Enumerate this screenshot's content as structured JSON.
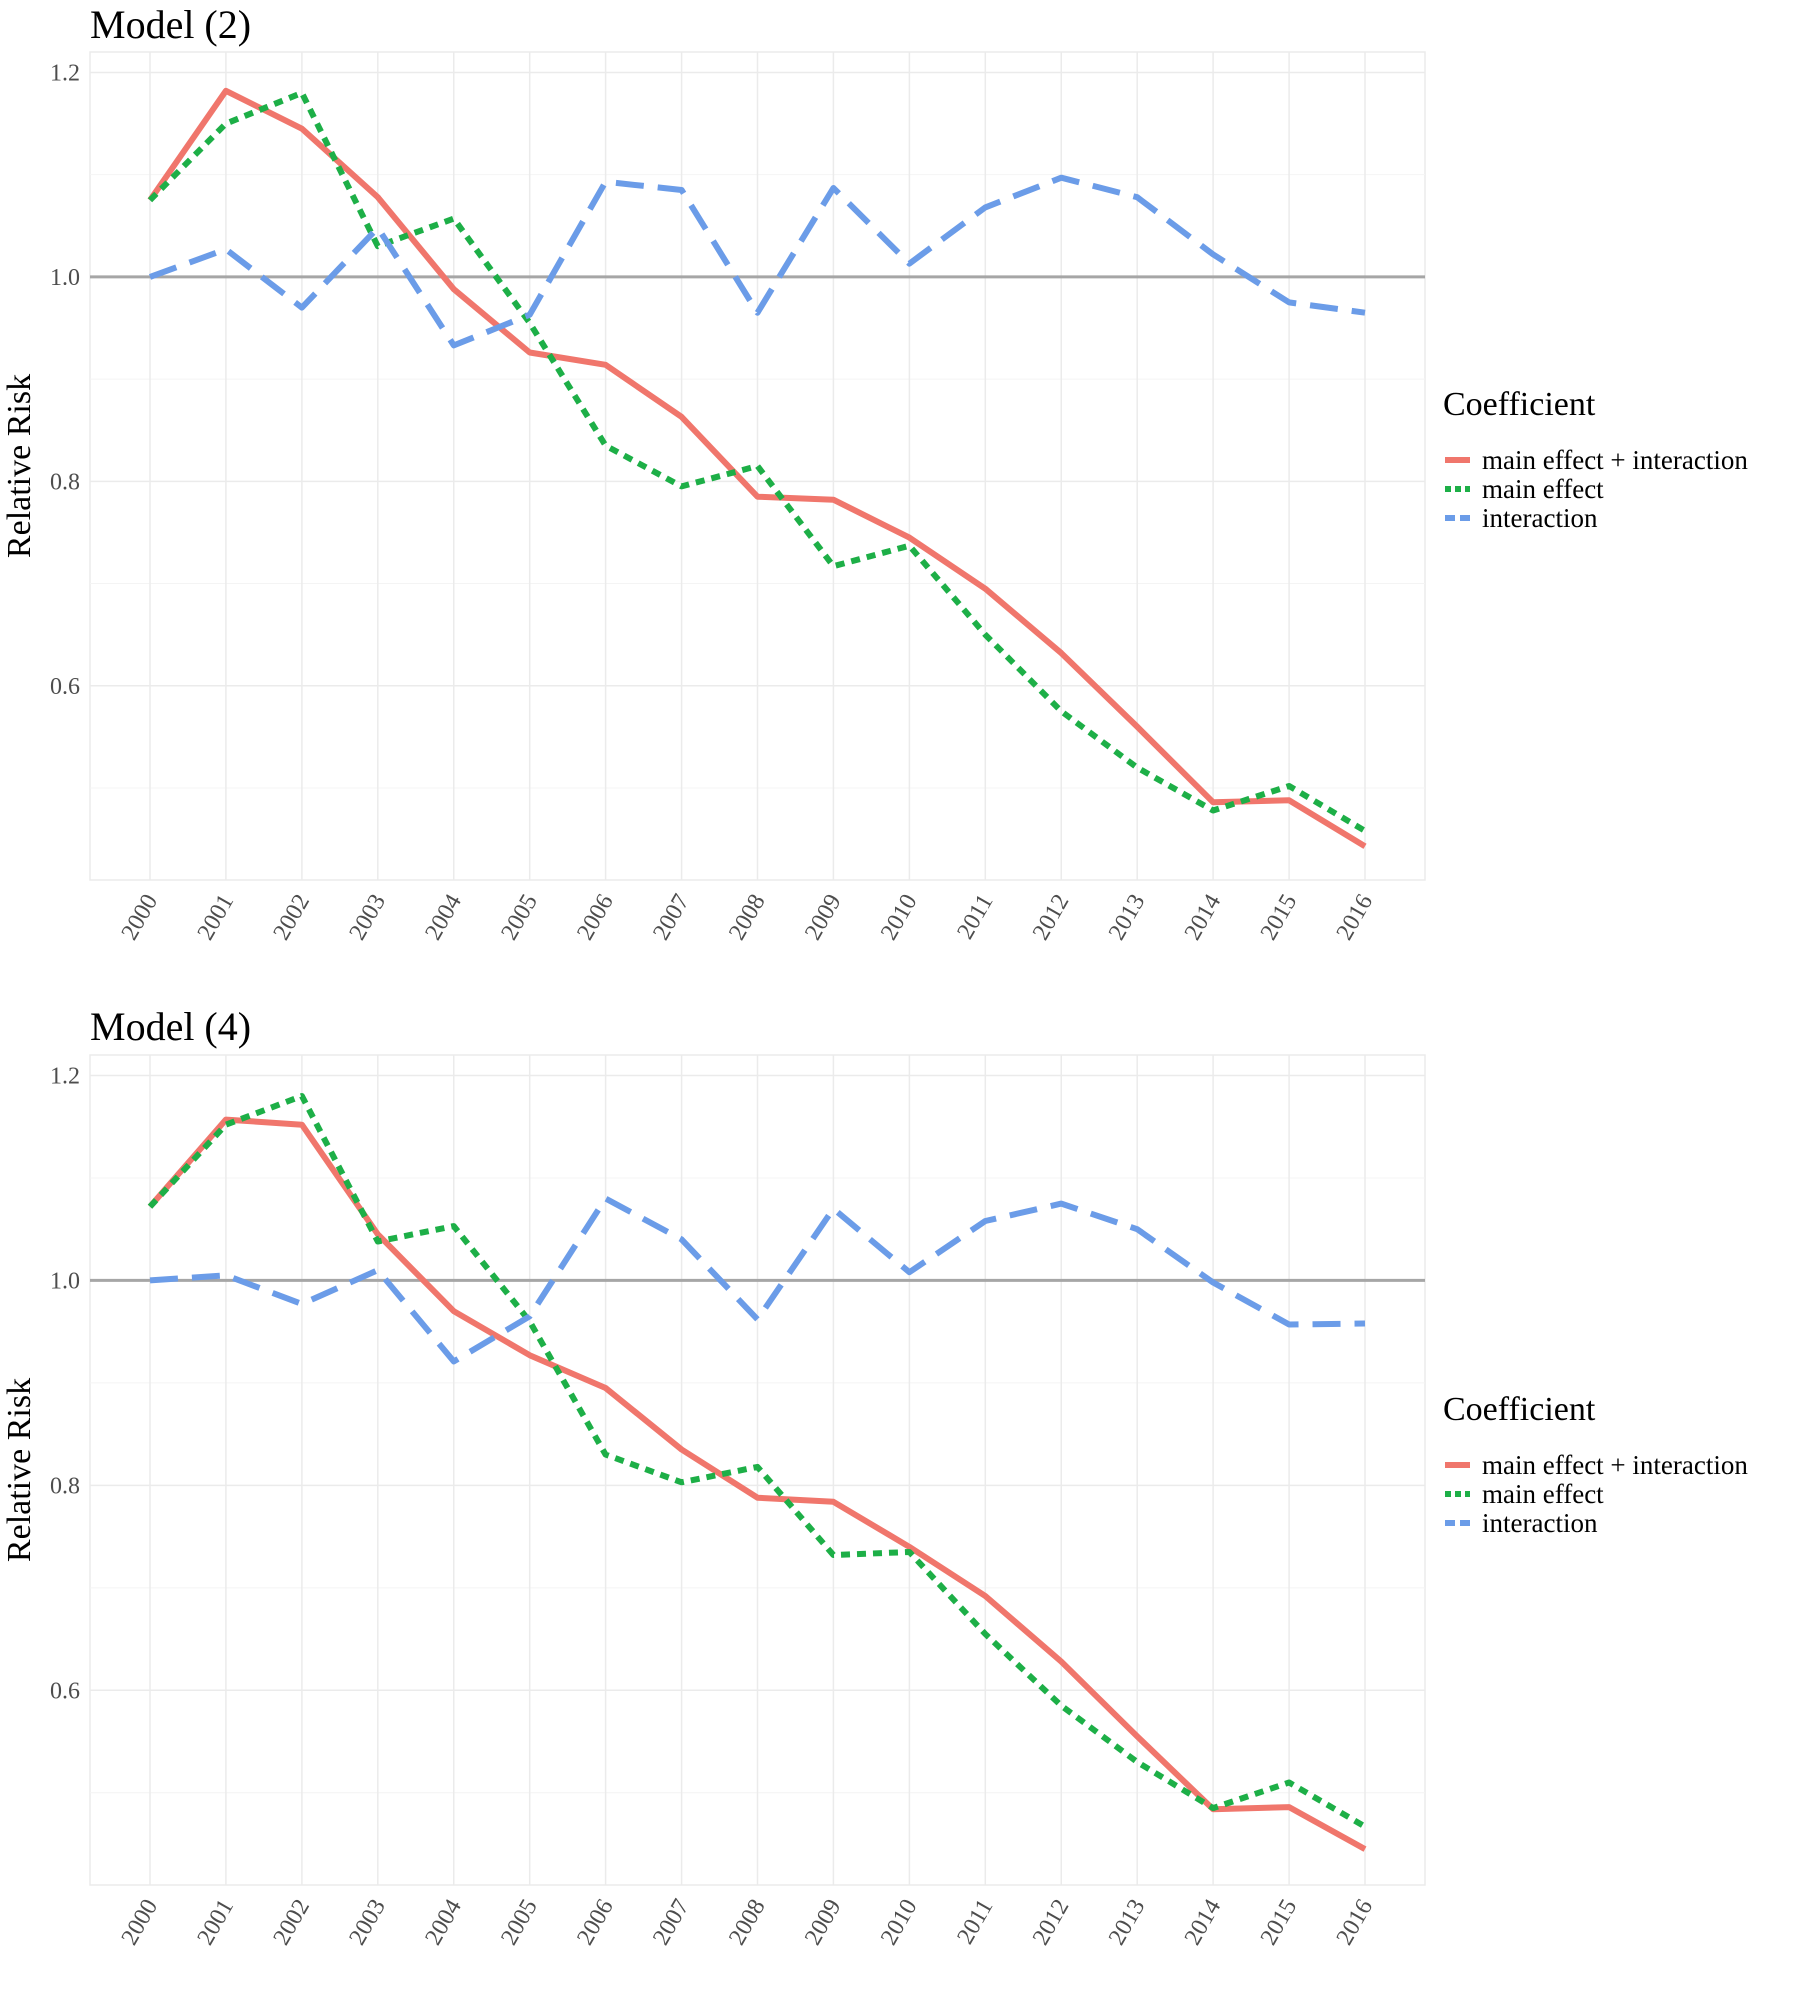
{
  "chart_data": [
    {
      "type": "line",
      "title": "Model (2)",
      "ylabel": "Relative Risk",
      "xlabel": "",
      "x": [
        "2000",
        "2001",
        "2002",
        "2003",
        "2004",
        "2005",
        "2006",
        "2007",
        "2008",
        "2009",
        "2010",
        "2011",
        "2012",
        "2013",
        "2014",
        "2015",
        "2016"
      ],
      "ylim": [
        0.41,
        1.22
      ],
      "yticks": [
        "0.6",
        "0.8",
        "1.0",
        "1.2"
      ],
      "reference_line": 1.0,
      "grid": true,
      "legend": {
        "title": "Coefficient",
        "placement": "right"
      },
      "series": [
        {
          "name": "main effect + interaction",
          "color": "#F0766C",
          "dash": "solid",
          "values": [
            1.075,
            1.182,
            1.145,
            1.078,
            0.988,
            0.926,
            0.914,
            0.863,
            0.785,
            0.782,
            0.745,
            0.695,
            0.632,
            0.56,
            0.486,
            0.488,
            0.443
          ]
        },
        {
          "name": "main effect",
          "color": "#1DAF47",
          "dash": "dotted",
          "values": [
            1.075,
            1.15,
            1.18,
            1.03,
            1.057,
            0.955,
            0.835,
            0.795,
            0.815,
            0.717,
            0.737,
            0.65,
            0.575,
            0.52,
            0.478,
            0.502,
            0.458
          ]
        },
        {
          "name": "interaction",
          "color": "#6B9CE8",
          "dash": "dashed",
          "values": [
            1.0,
            1.027,
            0.97,
            1.048,
            0.933,
            0.963,
            1.093,
            1.085,
            0.965,
            1.087,
            1.013,
            1.068,
            1.097,
            1.078,
            1.022,
            0.975,
            0.965
          ]
        }
      ]
    },
    {
      "type": "line",
      "title": "Model (4)",
      "ylabel": "Relative Risk",
      "xlabel": "",
      "x": [
        "2000",
        "2001",
        "2002",
        "2003",
        "2004",
        "2005",
        "2006",
        "2007",
        "2008",
        "2009",
        "2010",
        "2011",
        "2012",
        "2013",
        "2014",
        "2015",
        "2016"
      ],
      "ylim": [
        0.41,
        1.22
      ],
      "yticks": [
        "0.6",
        "0.8",
        "1.0",
        "1.2"
      ],
      "reference_line": 1.0,
      "grid": true,
      "legend": {
        "title": "Coefficient",
        "placement": "right"
      },
      "series": [
        {
          "name": "main effect + interaction",
          "color": "#F0766C",
          "dash": "solid",
          "values": [
            1.072,
            1.157,
            1.152,
            1.045,
            0.97,
            0.927,
            0.895,
            0.835,
            0.788,
            0.784,
            0.74,
            0.692,
            0.628,
            0.555,
            0.484,
            0.486,
            0.445
          ]
        },
        {
          "name": "main effect",
          "color": "#1DAF47",
          "dash": "dotted",
          "values": [
            1.072,
            1.152,
            1.18,
            1.038,
            1.053,
            0.96,
            0.83,
            0.803,
            0.818,
            0.732,
            0.735,
            0.655,
            0.585,
            0.53,
            0.485,
            0.51,
            0.467
          ]
        },
        {
          "name": "interaction",
          "color": "#6B9CE8",
          "dash": "dashed",
          "values": [
            1.0,
            1.005,
            0.977,
            1.01,
            0.921,
            0.965,
            1.08,
            1.04,
            0.962,
            1.07,
            1.008,
            1.058,
            1.075,
            1.05,
            0.998,
            0.957,
            0.958
          ]
        }
      ]
    }
  ]
}
